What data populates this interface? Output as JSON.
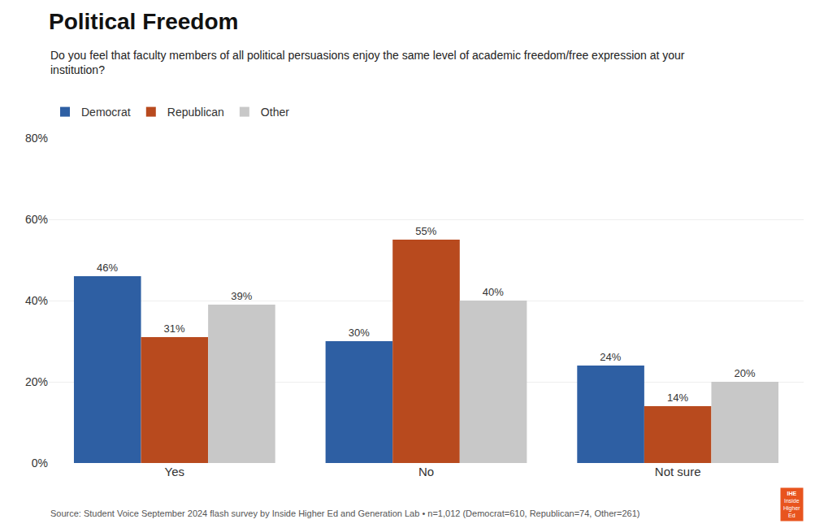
{
  "chart_data": {
    "type": "bar",
    "title": "Political Freedom",
    "subtitle": "Do you feel that faculty members of all political persuasions enjoy the same level of academic freedom/free expression at your\ninstitution?",
    "categories": [
      "Yes",
      "No",
      "Not sure"
    ],
    "series": [
      {
        "name": "Democrat",
        "color": "#2E5FA3",
        "values": [
          46,
          30,
          24
        ],
        "value_labels": [
          "46%",
          "30%",
          "24%"
        ]
      },
      {
        "name": "Republican",
        "color": "#B84A1E",
        "values": [
          31,
          55,
          14
        ],
        "value_labels": [
          "31%",
          "55%",
          "14%"
        ]
      },
      {
        "name": "Other",
        "color": "#C8C8C8",
        "values": [
          39,
          40,
          20
        ],
        "value_labels": [
          "39%",
          "40%",
          "20%"
        ]
      }
    ],
    "ylim": [
      0,
      80
    ],
    "yticks": [
      {
        "value": 0,
        "label": "0%"
      },
      {
        "value": 20,
        "label": "20%"
      },
      {
        "value": 40,
        "label": "40%"
      },
      {
        "value": 60,
        "label": "60%"
      },
      {
        "value": 80,
        "label": "80%"
      }
    ],
    "grid": true,
    "legend": "top left",
    "data_labels": true,
    "annotations": [
      "Source: Student Voice September 2024 flash survey by Inside Higher Ed and Generation Lab • n=1,012 (Democrat=610, Republican=74, Other=261)",
      "IHE",
      "Inside",
      "Higher",
      "Ed"
    ]
  }
}
